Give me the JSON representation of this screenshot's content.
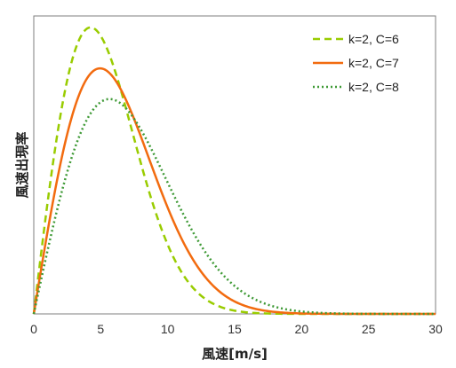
{
  "chart_data": {
    "type": "line",
    "xlabel": "風速[m/s]",
    "ylabel": "風速出現率",
    "xlim": [
      0,
      30
    ],
    "x_ticks": [
      0,
      5,
      10,
      15,
      20,
      25,
      30
    ],
    "grid": false,
    "legend_position": "top-right",
    "series": [
      {
        "name": "k=2, C=6",
        "k": 2,
        "C": 6,
        "color": "#99cc00",
        "dash": "dashed"
      },
      {
        "name": "k=2, C=7",
        "k": 2,
        "C": 7,
        "color": "#f26b0f",
        "dash": "solid"
      },
      {
        "name": "k=2, C=8",
        "k": 2,
        "C": 8,
        "color": "#3f9a36",
        "dash": "dotted"
      }
    ]
  }
}
